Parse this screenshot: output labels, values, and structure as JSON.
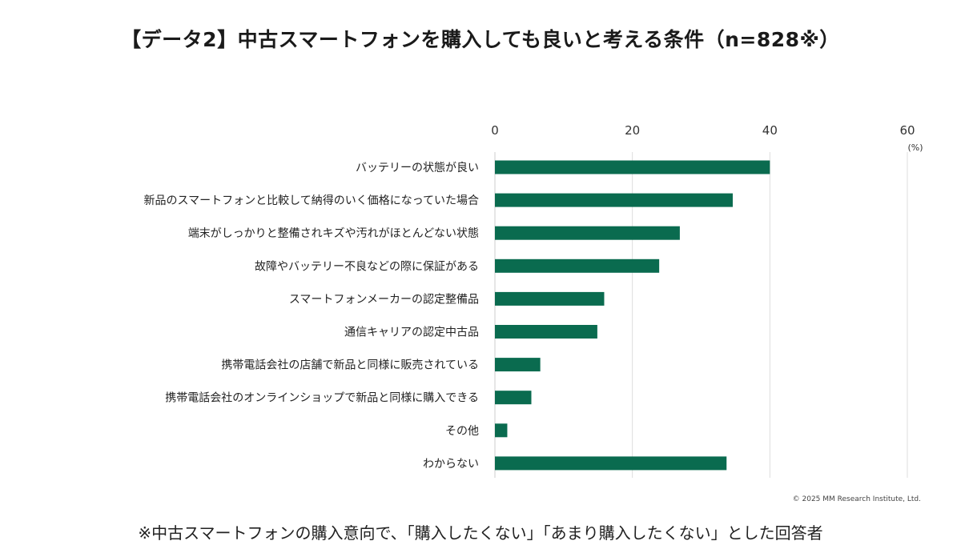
{
  "title": "【データ2】中古スマートフォンを購入しても良いと考える条件（n=828※）",
  "footnote": "※中古スマートフォンの購入意向で、「購入したくない」「あまり購入したくない」とした回答者",
  "copyright": "© 2025 MM Research Institute, Ltd.",
  "colors": {
    "bar": "#0a6b4f",
    "grid": "#dddddd",
    "axis": "#cccccc"
  },
  "chart_data": {
    "type": "bar",
    "orientation": "horizontal",
    "title": "【データ2】中古スマートフォンを購入しても良いと考える条件（n=828※）",
    "xlabel": "(%)",
    "xlim": [
      0,
      60
    ],
    "xticks": [
      0,
      20,
      40,
      60
    ],
    "grid": true,
    "categories": [
      "バッテリーの状態が良い",
      "新品のスマートフォンと比較して納得のいく価格になっていた場合",
      "端末がしっかりと整備されキズや汚れがほとんどない状態",
      "故障やバッテリー不良などの際に保証がある",
      "スマートフォンメーカーの認定整備品",
      "通信キャリアの認定中古品",
      "携帯電話会社の店舗で新品と同様に販売されている",
      "携帯電話会社のオンラインショップで新品と同様に購入できる",
      "その他",
      "わからない"
    ],
    "values": [
      40.0,
      34.6,
      26.9,
      23.9,
      15.9,
      14.9,
      6.6,
      5.3,
      1.8,
      33.7
    ]
  }
}
